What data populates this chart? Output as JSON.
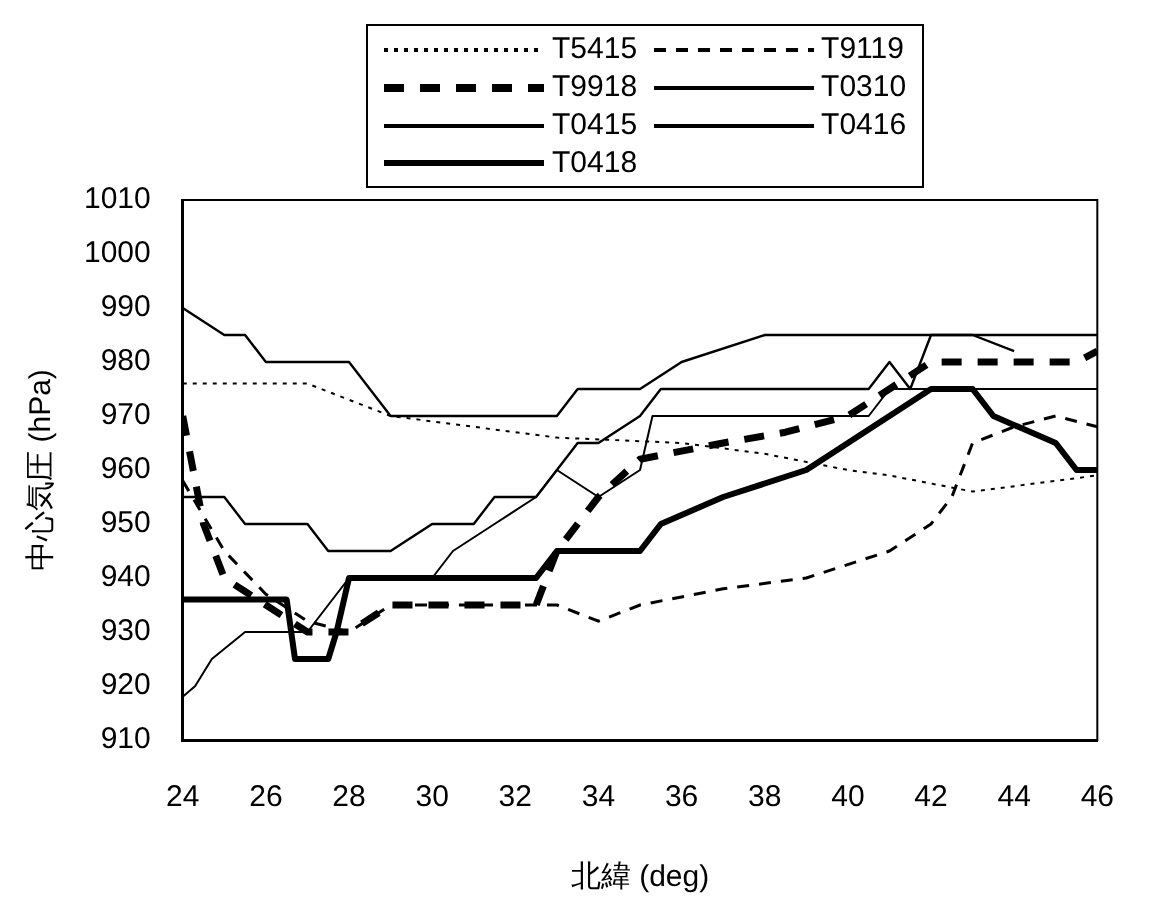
{
  "chart_data": {
    "type": "line",
    "xlabel": "北緯 (deg)",
    "ylabel": "中心気圧 (hPa)",
    "xlim": [
      24,
      46
    ],
    "xticks": [
      24,
      26,
      28,
      30,
      32,
      34,
      36,
      38,
      40,
      42,
      44,
      46
    ],
    "ylim": [
      910,
      1010
    ],
    "yticks": [
      910,
      920,
      930,
      940,
      950,
      960,
      970,
      980,
      990,
      1000,
      1010
    ],
    "grid": false,
    "legend": "top",
    "marker": "none",
    "series": [
      {
        "name": "T5415",
        "color": "#000000",
        "line_style": "dotted",
        "x": [
          24,
          27,
          28,
          29,
          31,
          33,
          36,
          38,
          40,
          41,
          43,
          46
        ],
        "values": [
          976,
          976,
          973,
          970,
          968,
          966,
          965,
          963,
          960,
          959,
          956,
          959
        ]
      },
      {
        "name": "T9119",
        "color": "#000000",
        "line_style": "dashed",
        "x": [
          24,
          25,
          26,
          27,
          28,
          29,
          33,
          34,
          35,
          37,
          39,
          41,
          42,
          42.5,
          43,
          44,
          45,
          46
        ],
        "values": [
          958,
          945,
          937,
          932,
          930,
          935,
          935,
          932,
          935,
          938,
          940,
          945,
          950,
          955,
          965,
          968,
          970,
          968
        ]
      },
      {
        "name": "T9918",
        "color": "#000000",
        "line_style": "dashed",
        "x": [
          24,
          24.5,
          25,
          26,
          27,
          28,
          29,
          32.5,
          33,
          34,
          35,
          37,
          38.5,
          40,
          41,
          42,
          43,
          45.5,
          46
        ],
        "values": [
          970,
          950,
          940,
          935,
          930,
          930,
          935,
          935,
          945,
          955,
          962,
          965,
          967,
          970,
          975,
          980,
          980,
          980,
          982
        ]
      },
      {
        "name": "T0310",
        "color": "#000000",
        "line_style": "solid",
        "x": [
          24,
          24.3,
          24.7,
          25.5,
          27,
          27.5,
          28,
          30,
          30.5,
          31.5,
          32.5,
          33,
          34,
          35,
          35.3,
          40.5,
          41,
          42,
          46
        ],
        "values": [
          918,
          920,
          925,
          930,
          930,
          935,
          940,
          940,
          945,
          950,
          955,
          960,
          955,
          960,
          970,
          970,
          975,
          975,
          975
        ]
      },
      {
        "name": "T0415",
        "color": "#000000",
        "line_style": "solid",
        "x": [
          24,
          25,
          25.5,
          26,
          28,
          28.5,
          29,
          33,
          33.5,
          35,
          36,
          38,
          42,
          43,
          44
        ],
        "values": [
          990,
          985,
          985,
          980,
          980,
          975,
          970,
          970,
          975,
          975,
          980,
          985,
          985,
          985,
          982
        ]
      },
      {
        "name": "T0416",
        "color": "#000000",
        "line_style": "solid",
        "x": [
          24,
          25,
          25.5,
          27,
          27.5,
          29,
          30,
          31,
          31.5,
          32.5,
          33,
          33.5,
          34,
          35,
          35.5,
          40.5,
          41,
          41.5,
          42,
          43,
          46
        ],
        "values": [
          955,
          955,
          950,
          950,
          945,
          945,
          950,
          950,
          955,
          955,
          960,
          965,
          965,
          970,
          975,
          975,
          980,
          975,
          985,
          985,
          985
        ]
      },
      {
        "name": "T0418",
        "color": "#000000",
        "line_style": "solid",
        "x": [
          24,
          26.5,
          26.7,
          27.5,
          27.7,
          28,
          32.5,
          33,
          35,
          35.5,
          37,
          39,
          40,
          41,
          42,
          43,
          43.5,
          45,
          45.5,
          46
        ],
        "values": [
          936,
          936,
          925,
          925,
          930,
          940,
          940,
          945,
          945,
          950,
          955,
          960,
          965,
          970,
          975,
          975,
          970,
          965,
          960,
          960
        ]
      }
    ]
  }
}
